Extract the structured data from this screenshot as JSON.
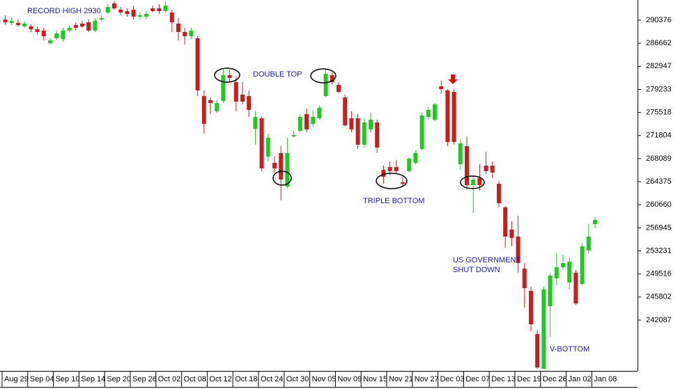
{
  "chart_data": {
    "type": "candlestick",
    "categories": [
      "Aug 29",
      null,
      null,
      null,
      "Sep 04",
      null,
      null,
      null,
      "Sep 10",
      null,
      null,
      null,
      "Sep 14",
      null,
      null,
      null,
      "Sep 20",
      null,
      null,
      null,
      "Sep 26",
      null,
      null,
      null,
      "Oct 02",
      null,
      null,
      null,
      "Oct 08",
      null,
      null,
      null,
      "Oct 12",
      null,
      null,
      null,
      "Oct 18",
      null,
      null,
      null,
      "Oct 24",
      null,
      null,
      null,
      "Oct 30",
      null,
      null,
      null,
      "Nov 05",
      null,
      null,
      null,
      "Nov 09",
      null,
      null,
      null,
      "Nov 15",
      null,
      null,
      null,
      "Nov 21",
      null,
      null,
      null,
      "Nov 27",
      null,
      null,
      null,
      "Dec 03",
      null,
      null,
      null,
      "Dec 07",
      null,
      null,
      null,
      "Dec 13",
      null,
      null,
      null,
      "Dec 19",
      null,
      null,
      null,
      "Dec 26",
      null,
      null,
      null,
      "Jan 02",
      null,
      null,
      null,
      "Jan 08"
    ],
    "open": [
      290490,
      289930,
      289930,
      289370,
      289370,
      288920,
      288700,
      286680,
      287460,
      287350,
      288700,
      289590,
      289820,
      290040,
      288700,
      290490,
      291610,
      293070,
      292060,
      291830,
      292060,
      290940,
      290940,
      292280,
      292280,
      291830,
      291610,
      289820,
      288470,
      287800,
      287460,
      278160,
      277490,
      275700,
      277380,
      281520,
      280400,
      278390,
      278160,
      272900,
      274580,
      268420,
      267410,
      268980,
      263600,
      271670,
      272560,
      275250,
      273680,
      274580,
      278160,
      281520,
      279960,
      277940,
      274580,
      274580,
      270320,
      272790,
      273910,
      266290,
      266740,
      266740,
      264270,
      266060,
      267410,
      269650,
      274800,
      274350,
      279730,
      279060,
      278840,
      267180,
      270100,
      263820,
      264940,
      266960,
      266960,
      264050,
      260240,
      256650,
      255530,
      250380,
      246790,
      239850,
      234240,
      244330,
      248810,
      250600,
      248140,
      249710,
      247910,
      253290,
      257550
    ],
    "high": [
      291160,
      290820,
      290490,
      290260,
      289700,
      289370,
      289140,
      287460,
      288700,
      289140,
      289590,
      290040,
      290260,
      290490,
      290710,
      291160,
      292950,
      293400,
      292500,
      292280,
      292730,
      291610,
      291830,
      292730,
      292950,
      293400,
      292060,
      290710,
      289140,
      289140,
      287800,
      279060,
      277940,
      277490,
      282420,
      282420,
      281300,
      280400,
      279060,
      275700,
      274800,
      272110,
      268530,
      270100,
      271440,
      272560,
      275250,
      276150,
      275920,
      276600,
      282420,
      281970,
      280400,
      278390,
      275700,
      275250,
      274580,
      275480,
      274350,
      266960,
      267630,
      267860,
      265170,
      268300,
      269420,
      275480,
      276370,
      277040,
      280630,
      279280,
      279280,
      271220,
      271670,
      265390,
      267180,
      269200,
      267630,
      264500,
      260460,
      258000,
      258890,
      251270,
      247470,
      240520,
      247470,
      249710,
      252840,
      252620,
      252170,
      250150,
      254410,
      257550,
      258670
    ],
    "low": [
      289590,
      289590,
      289370,
      289140,
      288470,
      288020,
      287130,
      286450,
      287130,
      286900,
      288470,
      288700,
      289140,
      288470,
      288470,
      290260,
      291380,
      292060,
      291160,
      290940,
      290490,
      290490,
      290490,
      291610,
      291380,
      291610,
      288470,
      287130,
      286450,
      287350,
      278160,
      272110,
      275250,
      275480,
      277040,
      280400,
      275700,
      276820,
      274800,
      270320,
      266060,
      267630,
      265840,
      261360,
      263370,
      271440,
      272340,
      272340,
      273230,
      274350,
      277940,
      279960,
      278610,
      273230,
      272340,
      269650,
      269870,
      272340,
      268980,
      264050,
      265390,
      265620,
      263600,
      265840,
      267180,
      269420,
      274350,
      274130,
      278610,
      270100,
      270320,
      266290,
      263150,
      259340,
      262930,
      265620,
      264940,
      260240,
      253740,
      253960,
      249710,
      244100,
      240290,
      234240,
      234240,
      239400,
      247690,
      250150,
      247020,
      244550,
      247690,
      252840,
      256880
    ],
    "close": [
      290040,
      290260,
      289590,
      289820,
      288920,
      288470,
      287800,
      287130,
      288250,
      288700,
      289140,
      289140,
      289370,
      288700,
      290260,
      290710,
      292500,
      292280,
      291610,
      291380,
      290940,
      291160,
      291380,
      291830,
      291830,
      292730,
      290040,
      288470,
      287800,
      288700,
      279060,
      273680,
      277040,
      277040,
      281520,
      281080,
      277270,
      277270,
      275920,
      274800,
      266510,
      271440,
      266510,
      264720,
      268980,
      271890,
      274800,
      272790,
      274800,
      276260,
      281750,
      280400,
      278840,
      273460,
      272790,
      270320,
      273910,
      274350,
      269870,
      265170,
      266060,
      266060,
      264050,
      268080,
      268980,
      275030,
      275920,
      276820,
      279280,
      270770,
      270770,
      270550,
      263820,
      264720,
      263820,
      266060,
      265840,
      260910,
      255530,
      255310,
      251270,
      247240,
      241410,
      234470,
      247020,
      249260,
      250600,
      251270,
      251500,
      244780,
      253960,
      255530,
      258220
    ],
    "up_color": "#22c822",
    "down_color": "#c81e1e",
    "ylim": [
      234240,
      293625
    ],
    "yticks": [
      290376,
      286662,
      282947,
      279233,
      275518,
      271804,
      268089,
      264375,
      260660,
      256945,
      253231,
      249516,
      245802,
      242087
    ],
    "annotations": [
      "RECORD HIGH 2930",
      "DOUBLE TOP",
      "TRIPLE BOTTOM",
      "US GOVERNMENT",
      "SHUT DOWN",
      "V-BOTTOM"
    ]
  }
}
